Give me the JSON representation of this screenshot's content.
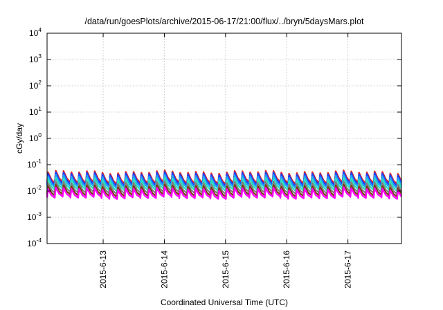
{
  "chart_data": {
    "type": "line",
    "title": "/data/run/goesPlots/archive/2015-06-17/21:00/flux/../bryn/5daysMars.plot",
    "xlabel": "Coordinated Universal Time (UTC)",
    "ylabel": "cGy/day",
    "xlim": [
      "2015-06-12 02:00",
      "2015-06-17 21:00"
    ],
    "ylim": [
      0.0001,
      10000
    ],
    "yscale": "log",
    "grid": true,
    "x_ticks": [
      "2015-6-13",
      "2015-6-14",
      "2015-6-15",
      "2015-6-16",
      "2015-6-17"
    ],
    "y_ticks": [
      {
        "base": "10",
        "exp": "-4"
      },
      {
        "base": "10",
        "exp": "-3"
      },
      {
        "base": "10",
        "exp": "-2"
      },
      {
        "base": "10",
        "exp": "-1"
      },
      {
        "base": "10",
        "exp": "0"
      },
      {
        "base": "10",
        "exp": "1"
      },
      {
        "base": "10",
        "exp": "2"
      },
      {
        "base": "10",
        "exp": "3"
      },
      {
        "base": "10",
        "exp": "4"
      }
    ],
    "pattern": {
      "description": "sawtooth: jumps up roughly every 3 hours then decays",
      "period_hours": 3.05
    },
    "series": [
      {
        "color": "#d62728",
        "high": 0.052,
        "low": 0.02
      },
      {
        "color": "#1f3fff",
        "high": 0.045,
        "low": 0.017
      },
      {
        "color": "#1fa3ff",
        "high": 0.036,
        "low": 0.014
      },
      {
        "color": "#2ee0c0",
        "high": 0.028,
        "low": 0.011
      },
      {
        "color": "#808080",
        "high": 0.02,
        "low": 0.0085
      },
      {
        "color": "#7a3f10",
        "high": 0.015,
        "low": 0.0068
      },
      {
        "color": "#ff00ff",
        "high": 0.012,
        "low": 0.0056
      }
    ]
  }
}
